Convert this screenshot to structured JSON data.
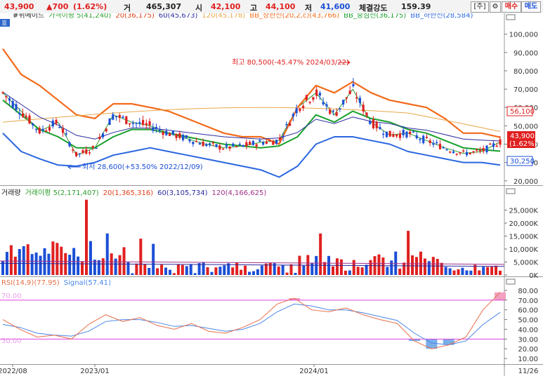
{
  "header": {
    "price": "43,900",
    "change": "▲700",
    "change_pct": "(1.62%)",
    "vol_label": "거",
    "volume": "465,307",
    "open_label": "시",
    "open": "42,100",
    "high_label": "고",
    "high": "44,100",
    "low_label": "저",
    "low": "41,600",
    "strength_label": "체결강도",
    "strength": "159.39",
    "btn_code": "[주]",
    "btn_gear": "⚙",
    "btn_buy": "매수",
    "btn_sell": "매도"
  },
  "colors": {
    "up": "#e02020",
    "down": "#1b4fd6",
    "ma5": "#2e9e2e",
    "ma20": "#e0401a",
    "ma60": "#2a2aa0",
    "ma120": "#e6a84a",
    "bb_upper": "#f26a1a",
    "bb_mid": "#18a02a",
    "bb_lower": "#2a66e0",
    "rsi": "#e8704a",
    "signal": "#4a86e8",
    "rsi_band": "#e040e0"
  },
  "price_panel": {
    "tag": "호",
    "legend": [
      {
        "text": "#위메이드",
        "color": "#222"
      },
      {
        "text": "가격이평 5(41,240)",
        "color": "#2e9e2e"
      },
      {
        "text": "20(36,175)",
        "color": "#e0401a"
      },
      {
        "text": "60(45,673)",
        "color": "#2a2aa0"
      },
      {
        "text": "120(45,178)",
        "color": "#e6a84a"
      },
      {
        "text": "BB_상한선(20,2,c)(43,766)",
        "color": "#f26a1a"
      },
      {
        "text": "BB_중심선(36,175)",
        "color": "#18a02a"
      },
      {
        "text": "BB_하한선(28,584)",
        "color": "#2a66e0"
      }
    ],
    "y_ticks": [
      "100,000",
      "90,000",
      "80,000",
      "70,000",
      "60,000",
      "50,000",
      "40,000",
      "30,000",
      "20,000"
    ],
    "annot_high": "최고 80,500(-45.47% 2024/03/22)",
    "annot_low": "최저 28,600(+53.50% 2022/12/09)",
    "tag_upper": "56,100",
    "tag_price": "43,900",
    "tag_pct": "(1.62%)",
    "tag_lower": "30,250"
  },
  "volume_panel": {
    "legend": [
      {
        "text": "거래량",
        "color": "#222"
      },
      {
        "text": "거래이평 5(2,171,407)",
        "color": "#2e9e2e"
      },
      {
        "text": "20(1,365,316)",
        "color": "#e0401a"
      },
      {
        "text": "60(3,105,734)",
        "color": "#2a2aa0"
      },
      {
        "text": "120(4,166,625)",
        "color": "#a0308a"
      }
    ],
    "y_ticks": [
      "25,000K",
      "20,000K",
      "15,000K",
      "10,000K",
      "5,000K",
      "0K"
    ]
  },
  "rsi_panel": {
    "legend": [
      {
        "text": "RSI(14,9)(77.95)",
        "color": "#e8704a"
      },
      {
        "text": "Signal(57.41)",
        "color": "#4a86e8"
      }
    ],
    "y_ticks": [
      "80.00",
      "70.00",
      "60.00",
      "50.00",
      "40.00",
      "30.00",
      "20.00",
      "10.00"
    ],
    "band_hi_label": "70.00",
    "band_lo_label": "30.00"
  },
  "x_axis": {
    "labels": [
      "2022/08",
      "2023/01",
      "2024/01",
      "11/26"
    ]
  },
  "chart_data": {
    "type": "line",
    "title": "#위메이드",
    "x": [
      "2022/08",
      "2022/09",
      "2022/10",
      "2022/11",
      "2022/12",
      "2023/01",
      "2023/02",
      "2023/03",
      "2023/04",
      "2023/05",
      "2023/06",
      "2023/07",
      "2023/08",
      "2023/09",
      "2023/10",
      "2023/11",
      "2023/12",
      "2024/01",
      "2024/02",
      "2024/03",
      "2024/04",
      "2024/05",
      "2024/06",
      "2024/07",
      "2024/08",
      "2024/09",
      "2024/10",
      "2024/11"
    ],
    "ylim": [
      18000,
      106000
    ],
    "series": [
      {
        "name": "가격이평 5",
        "values": [
          68000,
          58000,
          47000,
          52000,
          34000,
          38000,
          56000,
          52000,
          50000,
          46000,
          43000,
          40000,
          38000,
          39000,
          41000,
          42000,
          60000,
          68000,
          56000,
          70000,
          52000,
          45000,
          46000,
          42000,
          38000,
          35000,
          36000,
          41240
        ]
      },
      {
        "name": "BB_상한선",
        "values": [
          92000,
          78000,
          72000,
          64000,
          56000,
          54000,
          62000,
          62000,
          60000,
          58000,
          54000,
          50000,
          46000,
          44000,
          44000,
          40000,
          60000,
          72000,
          68000,
          74000,
          68000,
          64000,
          62000,
          60000,
          54000,
          46000,
          46000,
          43766
        ]
      },
      {
        "name": "BB_중심선",
        "values": [
          64000,
          56000,
          48000,
          44000,
          38000,
          38000,
          44000,
          48000,
          48000,
          46000,
          44000,
          42000,
          40000,
          39000,
          38000,
          39000,
          44000,
          56000,
          52000,
          58000,
          54000,
          52000,
          48000,
          46000,
          42000,
          38000,
          37000,
          36175
        ]
      },
      {
        "name": "BB_하한선",
        "values": [
          46000,
          36000,
          32000,
          28600,
          28000,
          30000,
          34000,
          36000,
          38000,
          36000,
          34000,
          32000,
          30000,
          28000,
          26000,
          22000,
          28000,
          40000,
          44000,
          44000,
          42000,
          40000,
          36000,
          34000,
          32000,
          30000,
          30000,
          28584
        ]
      }
    ]
  }
}
